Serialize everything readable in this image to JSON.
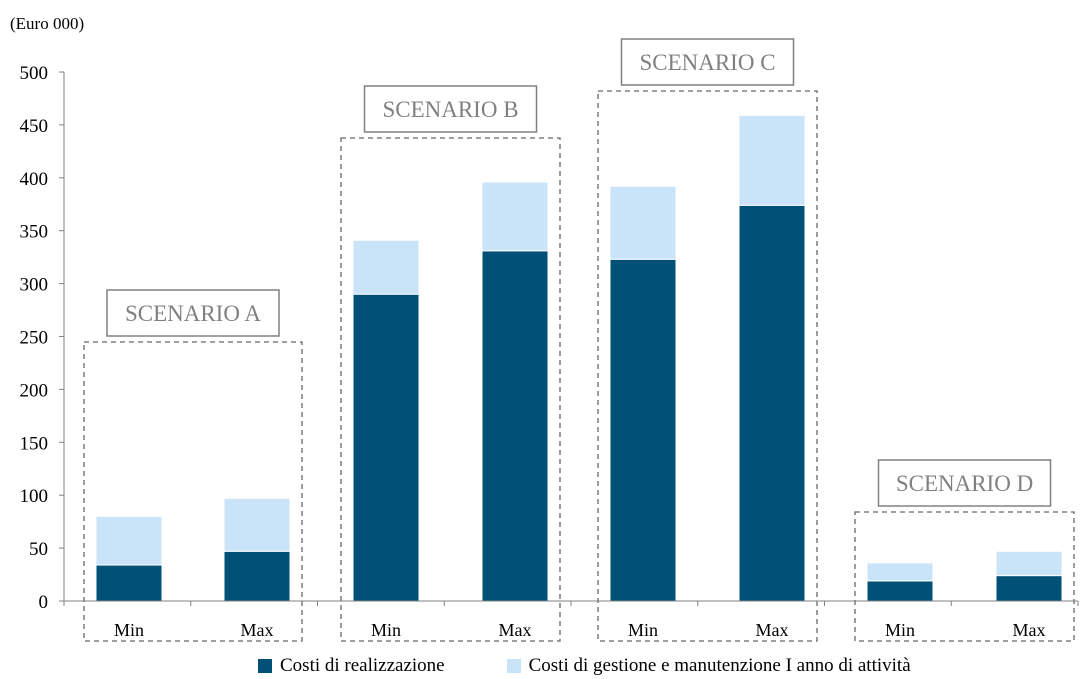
{
  "unit_label": "(Euro 000)",
  "chart_data": {
    "type": "bar",
    "stacked": true,
    "ylim": [
      0,
      500
    ],
    "yticks": [
      0,
      50,
      100,
      150,
      200,
      250,
      300,
      350,
      400,
      450,
      500
    ],
    "groups": [
      {
        "name": "SCENARIO A",
        "categories": [
          "Min",
          "Max"
        ]
      },
      {
        "name": "SCENARIO B",
        "categories": [
          "Min",
          "Max"
        ]
      },
      {
        "name": "SCENARIO C",
        "categories": [
          "Min",
          "Max"
        ]
      },
      {
        "name": "SCENARIO D",
        "categories": [
          "Min",
          "Max"
        ]
      }
    ],
    "categories": [
      "Min",
      "Max",
      "Min",
      "Max",
      "Min",
      "Max",
      "Min",
      "Max"
    ],
    "series": [
      {
        "name": "Costi di realizzazione",
        "color": "#005077",
        "values": [
          34,
          47,
          290,
          331,
          323,
          374,
          19,
          24
        ]
      },
      {
        "name": "Costi di gestione e manutenzione I anno di attività",
        "color": "#c9e3f9",
        "values": [
          46,
          50,
          51,
          65,
          69,
          85,
          17,
          23
        ]
      }
    ],
    "legend_position": "bottom",
    "grid": false
  }
}
